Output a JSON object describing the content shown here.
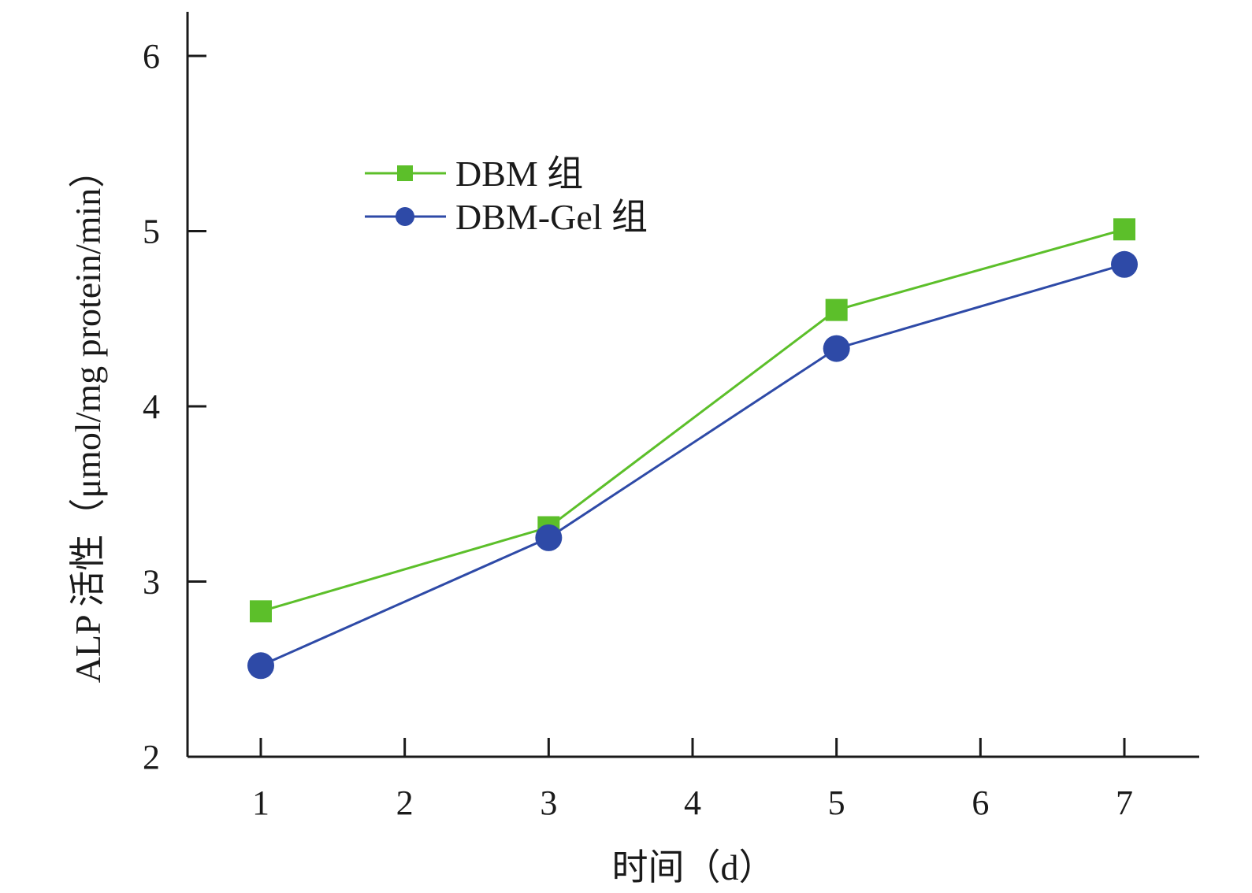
{
  "chart_data": {
    "type": "line",
    "xlabel": "时间（d）",
    "ylabel": "ALP 活性（μmol/mg protein/min）",
    "xlim": [
      0.5,
      7.5
    ],
    "ylim": [
      2,
      6.25
    ],
    "x_ticks": [
      1,
      2,
      3,
      4,
      5,
      6,
      7
    ],
    "y_ticks": [
      2,
      3,
      4,
      5,
      6
    ],
    "grid": false,
    "legend_position": "upper-left",
    "series": [
      {
        "name": "DBM 组",
        "color": "#5cbf2a",
        "marker": "square",
        "x": [
          1,
          3,
          5,
          7
        ],
        "y": [
          2.83,
          3.31,
          4.55,
          5.01
        ]
      },
      {
        "name": "DBM-Gel 组",
        "color": "#2e4aa7",
        "marker": "circle",
        "x": [
          1,
          3,
          5,
          7
        ],
        "y": [
          2.52,
          3.25,
          4.33,
          4.81
        ]
      }
    ]
  }
}
